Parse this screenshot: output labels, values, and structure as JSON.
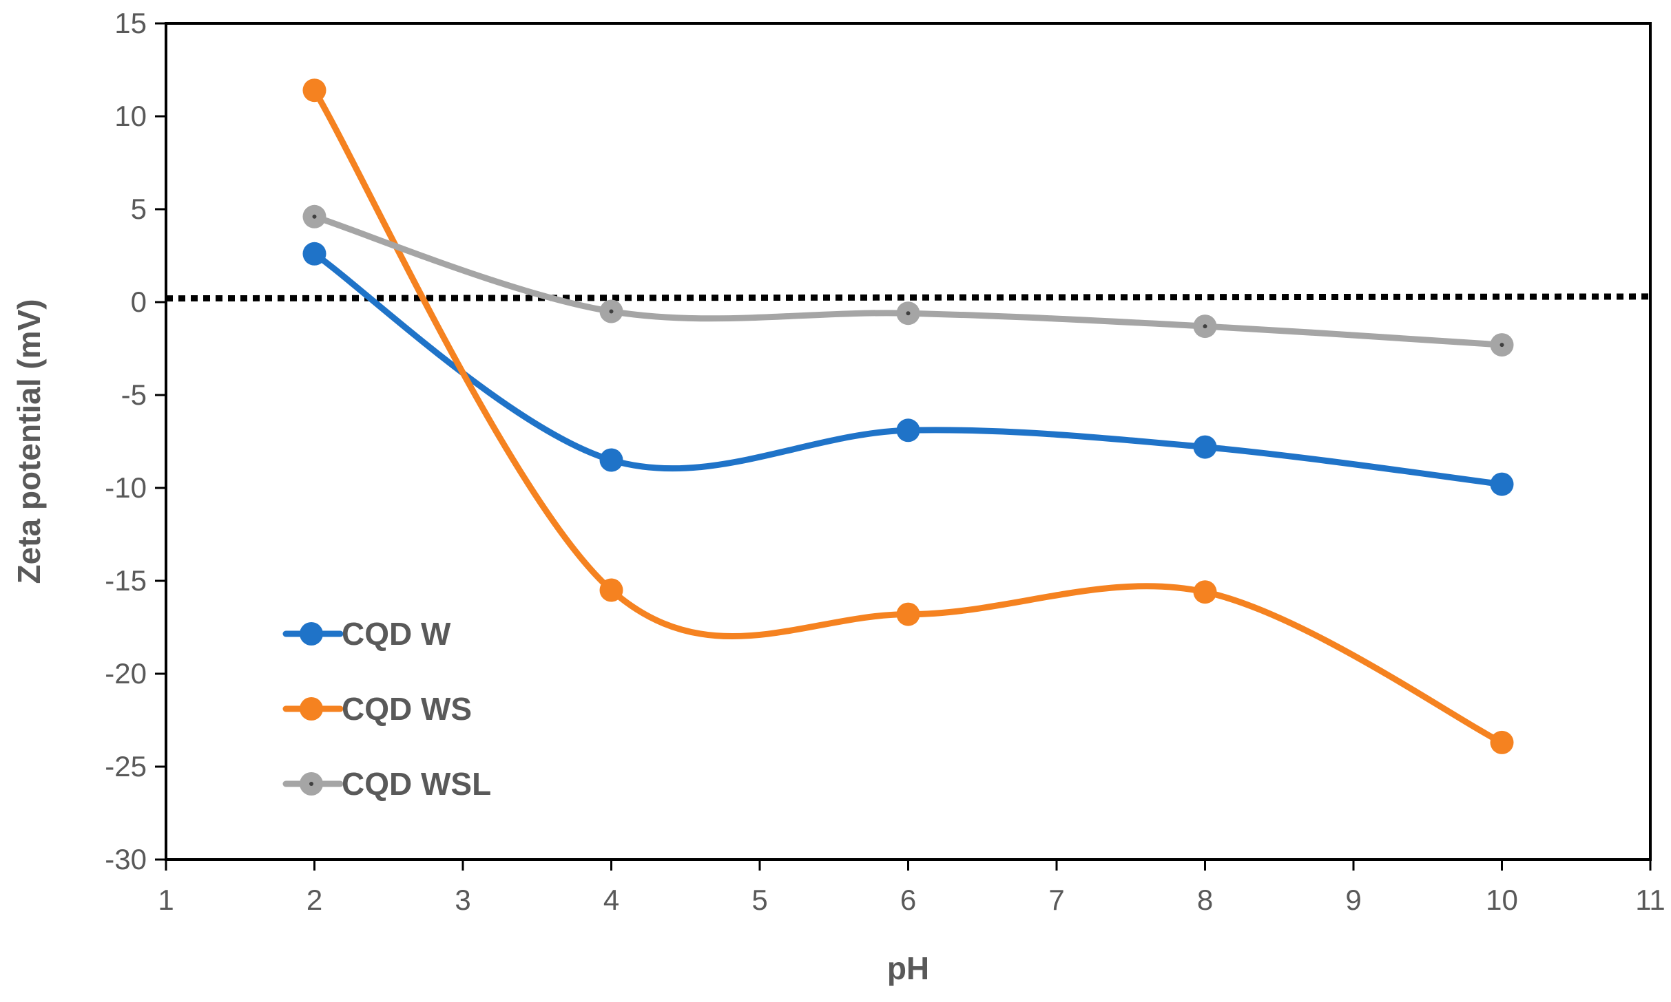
{
  "chart_data": {
    "type": "line",
    "title": "",
    "xlabel": "pH",
    "ylabel": "Zeta potential (mV)",
    "xlim": [
      1,
      11
    ],
    "ylim": [
      -30,
      15
    ],
    "xticks": [
      1,
      2,
      3,
      4,
      5,
      6,
      7,
      8,
      9,
      10,
      11
    ],
    "yticks": [
      15,
      10,
      5,
      0,
      -5,
      -10,
      -15,
      -20,
      -25,
      -30
    ],
    "x": [
      2,
      4,
      6,
      8,
      10
    ],
    "series": [
      {
        "name": "CQD W",
        "color": "#1f73c8",
        "values": [
          2.6,
          -8.5,
          -6.9,
          -7.8,
          -9.8
        ]
      },
      {
        "name": "CQD WS",
        "color": "#f58220",
        "values": [
          11.4,
          -15.5,
          -16.8,
          -15.6,
          -23.7
        ]
      },
      {
        "name": "CQD WSL",
        "color": "#a5a5a5",
        "values": [
          4.6,
          -0.5,
          -0.6,
          -1.3,
          -2.3
        ]
      }
    ],
    "reference_line": {
      "style": "dotted",
      "color": "#000000",
      "y_start": 0.2,
      "y_end": 0.3
    },
    "grid": false,
    "legend_position": "bottom-left"
  }
}
